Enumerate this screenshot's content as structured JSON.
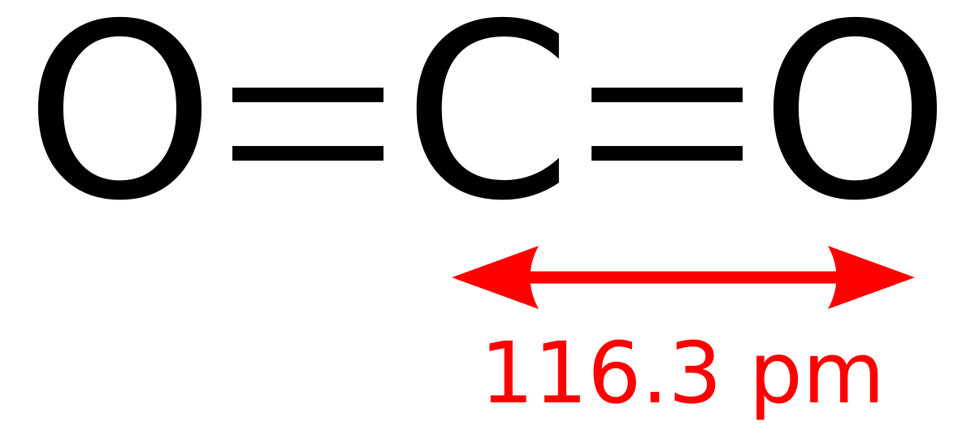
{
  "molecule": {
    "atoms": [
      "O",
      "C",
      "O"
    ],
    "bonds": [
      "double",
      "double"
    ]
  },
  "annotation": {
    "label": "116.3 pm",
    "color": "#ff0000",
    "type": "double-headed-arrow"
  },
  "colors": {
    "atoms": "#000000",
    "background": "#ffffff"
  }
}
